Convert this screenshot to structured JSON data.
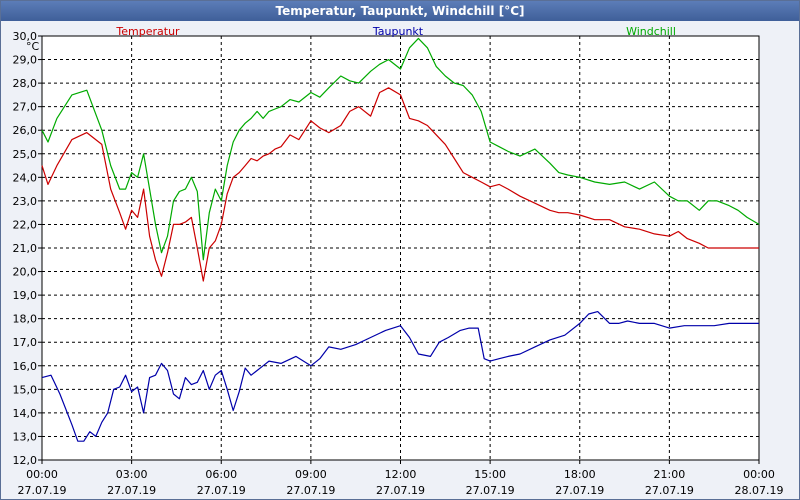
{
  "window": {
    "title": "Temperatur, Taupunkt, Windchill [°C]"
  },
  "colors": {
    "temperatur": "#cc0000",
    "taupunkt": "#0000aa",
    "windchill": "#00aa00",
    "grid": "#000000"
  },
  "chart_data": {
    "type": "line",
    "title": "Temperatur, Taupunkt, Windchill [°C]",
    "ylabel": "°C",
    "xlabel": "",
    "ylim": [
      12.0,
      30.0
    ],
    "xlim": [
      0,
      24
    ],
    "grid": true,
    "legend_position": "top",
    "y_ticks": [
      "12,0",
      "13,0",
      "14,0",
      "15,0",
      "16,0",
      "17,0",
      "18,0",
      "19,0",
      "20,0",
      "21,0",
      "22,0",
      "23,0",
      "24,0",
      "25,0",
      "26,0",
      "27,0",
      "28,0",
      "29,0",
      "30,0"
    ],
    "x_ticks": [
      {
        "time": "00:00",
        "date": "27.07.19"
      },
      {
        "time": "03:00",
        "date": "27.07.19"
      },
      {
        "time": "06:00",
        "date": "27.07.19"
      },
      {
        "time": "09:00",
        "date": "27.07.19"
      },
      {
        "time": "12:00",
        "date": "27.07.19"
      },
      {
        "time": "15:00",
        "date": "27.07.19"
      },
      {
        "time": "18:00",
        "date": "27.07.19"
      },
      {
        "time": "21:00",
        "date": "27.07.19"
      },
      {
        "time": "00:00",
        "date": "28.07.19"
      }
    ],
    "series": [
      {
        "name": "Temperatur",
        "color": "#cc0000",
        "x": [
          0,
          0.2,
          0.5,
          1,
          1.5,
          2,
          2.3,
          2.6,
          2.8,
          3,
          3.2,
          3.4,
          3.6,
          3.8,
          4,
          4.2,
          4.4,
          4.6,
          4.8,
          5,
          5.2,
          5.4,
          5.6,
          5.8,
          6,
          6.2,
          6.4,
          6.6,
          6.8,
          7,
          7.2,
          7.4,
          7.6,
          7.8,
          8,
          8.3,
          8.6,
          9,
          9.3,
          9.6,
          10,
          10.3,
          10.6,
          11,
          11.3,
          11.6,
          12,
          12.3,
          12.6,
          12.9,
          13.2,
          13.5,
          13.8,
          14.1,
          14.4,
          14.7,
          15,
          15.3,
          15.6,
          16,
          16.5,
          17,
          17.3,
          17.6,
          18,
          18.5,
          19,
          19.5,
          20,
          20.5,
          21,
          21.3,
          21.6,
          22,
          22.3,
          22.6,
          23,
          23.3,
          23.6,
          24
        ],
        "values": [
          24.5,
          23.7,
          24.5,
          25.6,
          25.9,
          25.4,
          23.5,
          22.5,
          21.8,
          22.6,
          22.3,
          23.5,
          21.5,
          20.5,
          19.8,
          20.8,
          22.0,
          22.0,
          22.1,
          22.3,
          21.0,
          19.6,
          21.0,
          21.3,
          22.0,
          23.3,
          24.0,
          24.2,
          24.5,
          24.8,
          24.7,
          24.9,
          25.0,
          25.2,
          25.3,
          25.8,
          25.6,
          26.4,
          26.1,
          25.9,
          26.2,
          26.8,
          27.0,
          26.6,
          27.6,
          27.8,
          27.5,
          26.5,
          26.4,
          26.2,
          25.8,
          25.4,
          24.8,
          24.2,
          24.0,
          23.8,
          23.6,
          23.7,
          23.5,
          23.2,
          22.9,
          22.6,
          22.5,
          22.5,
          22.4,
          22.2,
          22.2,
          21.9,
          21.8,
          21.6,
          21.5,
          21.7,
          21.4,
          21.2,
          21.0,
          21.0,
          21.0,
          21.0,
          21.0,
          21.0
        ],
        "legend": "Temperatur"
      },
      {
        "name": "Taupunkt",
        "color": "#0000aa",
        "x": [
          0,
          0.3,
          0.6,
          1,
          1.2,
          1.4,
          1.6,
          1.8,
          2,
          2.2,
          2.4,
          2.6,
          2.8,
          3,
          3.2,
          3.4,
          3.6,
          3.8,
          4,
          4.2,
          4.4,
          4.6,
          4.8,
          5,
          5.2,
          5.4,
          5.6,
          5.8,
          6,
          6.2,
          6.4,
          6.6,
          6.8,
          7,
          7.2,
          7.4,
          7.6,
          8,
          8.5,
          9,
          9.3,
          9.6,
          10,
          10.5,
          11,
          11.5,
          12,
          12.3,
          12.6,
          13,
          13.3,
          13.6,
          14,
          14.3,
          14.6,
          14.8,
          15,
          15.3,
          15.6,
          16,
          16.5,
          17,
          17.5,
          18,
          18.3,
          18.6,
          19,
          19.3,
          19.6,
          20,
          20.5,
          21,
          21.5,
          22,
          22.5,
          23,
          23.5,
          24
        ],
        "values": [
          15.5,
          15.6,
          14.8,
          13.5,
          12.8,
          12.8,
          13.2,
          13.0,
          13.6,
          14.0,
          15.0,
          15.1,
          15.6,
          14.9,
          15.1,
          14.0,
          15.5,
          15.6,
          16.1,
          15.8,
          14.8,
          14.6,
          15.5,
          15.2,
          15.3,
          15.8,
          15.0,
          15.6,
          15.8,
          15.0,
          14.1,
          14.9,
          15.9,
          15.6,
          15.8,
          16.0,
          16.2,
          16.1,
          16.4,
          16.0,
          16.3,
          16.8,
          16.7,
          16.9,
          17.2,
          17.5,
          17.7,
          17.2,
          16.5,
          16.4,
          17.0,
          17.2,
          17.5,
          17.6,
          17.6,
          16.3,
          16.2,
          16.3,
          16.4,
          16.5,
          16.8,
          17.1,
          17.3,
          17.8,
          18.2,
          18.3,
          17.8,
          17.8,
          17.9,
          17.8,
          17.8,
          17.6,
          17.7,
          17.7,
          17.7,
          17.8,
          17.8,
          17.8
        ],
        "legend": "Taupunkt"
      },
      {
        "name": "Windchill",
        "color": "#00aa00",
        "x": [
          0,
          0.2,
          0.5,
          1,
          1.5,
          2,
          2.3,
          2.6,
          2.8,
          3,
          3.2,
          3.4,
          3.6,
          3.8,
          4,
          4.2,
          4.4,
          4.6,
          4.8,
          5,
          5.2,
          5.4,
          5.6,
          5.8,
          6,
          6.2,
          6.4,
          6.6,
          6.8,
          7,
          7.2,
          7.4,
          7.6,
          7.8,
          8,
          8.3,
          8.6,
          9,
          9.3,
          9.6,
          10,
          10.3,
          10.6,
          11,
          11.3,
          11.6,
          12,
          12.3,
          12.6,
          12.9,
          13.2,
          13.5,
          13.8,
          14.1,
          14.4,
          14.7,
          15,
          15.3,
          15.6,
          16,
          16.5,
          17,
          17.3,
          17.6,
          18,
          18.5,
          19,
          19.5,
          20,
          20.5,
          21,
          21.3,
          21.6,
          22,
          22.3,
          22.6,
          23,
          23.3,
          23.6,
          24
        ],
        "values": [
          26.0,
          25.5,
          26.5,
          27.5,
          27.7,
          26.0,
          24.5,
          23.5,
          23.5,
          24.2,
          24.0,
          25.0,
          23.5,
          22.0,
          20.8,
          21.5,
          23.0,
          23.4,
          23.5,
          24.0,
          23.4,
          20.5,
          22.5,
          23.5,
          23.0,
          24.5,
          25.5,
          26.0,
          26.3,
          26.5,
          26.8,
          26.5,
          26.8,
          26.9,
          27.0,
          27.3,
          27.2,
          27.6,
          27.4,
          27.8,
          28.3,
          28.1,
          28.0,
          28.5,
          28.8,
          29.0,
          28.6,
          29.5,
          29.9,
          29.5,
          28.7,
          28.3,
          28.0,
          27.9,
          27.5,
          26.8,
          25.5,
          25.3,
          25.1,
          24.9,
          25.2,
          24.6,
          24.2,
          24.1,
          24.0,
          23.8,
          23.7,
          23.8,
          23.5,
          23.8,
          23.2,
          23.0,
          23.0,
          22.6,
          23.0,
          23.0,
          22.8,
          22.6,
          22.3,
          22.0
        ],
        "legend": "Windchill"
      }
    ]
  }
}
